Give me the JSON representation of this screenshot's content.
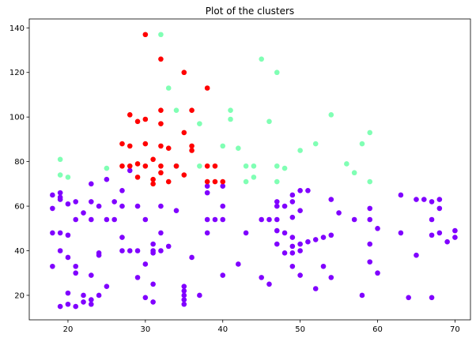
{
  "chart_data": {
    "type": "scatter",
    "title": "Plot of the clusters",
    "xlabel": "",
    "ylabel": "",
    "xlim": [
      15,
      72
    ],
    "ylim": [
      9,
      144
    ],
    "xticks": [
      20,
      30,
      40,
      50,
      60,
      70
    ],
    "yticks": [
      20,
      40,
      60,
      80,
      100,
      120,
      140
    ],
    "grid": false,
    "legend": "none",
    "series": [
      {
        "color": "#8000ff",
        "points": [
          [
            18,
            65
          ],
          [
            18,
            59
          ],
          [
            18,
            48
          ],
          [
            18,
            33
          ],
          [
            19,
            66
          ],
          [
            19,
            64
          ],
          [
            19,
            63
          ],
          [
            19,
            48
          ],
          [
            19,
            40
          ],
          [
            19,
            15
          ],
          [
            20,
            61
          ],
          [
            20,
            47
          ],
          [
            20,
            37
          ],
          [
            20,
            21
          ],
          [
            20,
            16
          ],
          [
            21,
            62
          ],
          [
            21,
            54
          ],
          [
            21,
            33
          ],
          [
            21,
            30
          ],
          [
            21,
            15
          ],
          [
            22,
            57
          ],
          [
            22,
            20
          ],
          [
            22,
            17
          ],
          [
            23,
            70
          ],
          [
            23,
            62
          ],
          [
            23,
            54
          ],
          [
            23,
            29
          ],
          [
            23,
            18
          ],
          [
            23,
            16
          ],
          [
            24,
            60
          ],
          [
            24,
            39
          ],
          [
            24,
            38
          ],
          [
            24,
            20
          ],
          [
            25,
            72
          ],
          [
            25,
            54
          ],
          [
            25,
            24
          ],
          [
            26,
            62
          ],
          [
            26,
            54
          ],
          [
            27,
            67
          ],
          [
            27,
            60
          ],
          [
            27,
            46
          ],
          [
            27,
            40
          ],
          [
            28,
            76
          ],
          [
            28,
            40
          ],
          [
            29,
            60
          ],
          [
            29,
            40
          ],
          [
            29,
            28
          ],
          [
            30,
            54
          ],
          [
            30,
            34
          ],
          [
            30,
            19
          ],
          [
            31,
            43
          ],
          [
            31,
            40
          ],
          [
            31,
            39
          ],
          [
            31,
            25
          ],
          [
            31,
            17
          ],
          [
            32,
            60
          ],
          [
            32,
            48
          ],
          [
            32,
            40
          ],
          [
            33,
            42
          ],
          [
            34,
            58
          ],
          [
            34,
            78
          ],
          [
            35,
            24
          ],
          [
            35,
            22
          ],
          [
            35,
            20
          ],
          [
            35,
            18
          ],
          [
            35,
            16
          ],
          [
            36,
            37
          ],
          [
            37,
            20
          ],
          [
            38,
            69
          ],
          [
            38,
            66
          ],
          [
            38,
            54
          ],
          [
            38,
            48
          ],
          [
            39,
            54
          ],
          [
            40,
            69
          ],
          [
            40,
            60
          ],
          [
            40,
            54
          ],
          [
            40,
            29
          ],
          [
            42,
            34
          ],
          [
            43,
            48
          ],
          [
            45,
            54
          ],
          [
            45,
            28
          ],
          [
            46,
            54
          ],
          [
            46,
            25
          ],
          [
            47,
            62
          ],
          [
            47,
            60
          ],
          [
            47,
            54
          ],
          [
            47,
            49
          ],
          [
            47,
            43
          ],
          [
            48,
            60
          ],
          [
            48,
            48
          ],
          [
            48,
            39
          ],
          [
            49,
            62
          ],
          [
            49,
            65
          ],
          [
            49,
            55
          ],
          [
            49,
            46
          ],
          [
            49,
            42
          ],
          [
            49,
            39
          ],
          [
            49,
            33
          ],
          [
            50,
            67
          ],
          [
            50,
            58
          ],
          [
            50,
            43
          ],
          [
            50,
            40
          ],
          [
            50,
            29
          ],
          [
            51,
            67
          ],
          [
            51,
            44
          ],
          [
            52,
            45
          ],
          [
            52,
            23
          ],
          [
            53,
            46
          ],
          [
            53,
            33
          ],
          [
            54,
            63
          ],
          [
            54,
            47
          ],
          [
            54,
            28
          ],
          [
            55,
            57
          ],
          [
            57,
            54
          ],
          [
            58,
            20
          ],
          [
            59,
            59
          ],
          [
            59,
            54
          ],
          [
            59,
            43
          ],
          [
            59,
            35
          ],
          [
            60,
            50
          ],
          [
            60,
            30
          ],
          [
            63,
            65
          ],
          [
            63,
            48
          ],
          [
            64,
            19
          ],
          [
            65,
            63
          ],
          [
            65,
            38
          ],
          [
            66,
            63
          ],
          [
            67,
            62
          ],
          [
            67,
            54
          ],
          [
            67,
            47
          ],
          [
            67,
            19
          ],
          [
            68,
            63
          ],
          [
            68,
            59
          ],
          [
            68,
            48
          ],
          [
            69,
            44
          ],
          [
            70,
            49
          ],
          [
            70,
            46
          ]
        ]
      },
      {
        "color": "#80ffb4",
        "points": [
          [
            19,
            81
          ],
          [
            19,
            74
          ],
          [
            20,
            73
          ],
          [
            25,
            77
          ],
          [
            32,
            137
          ],
          [
            33,
            113
          ],
          [
            34,
            103
          ],
          [
            34,
            78
          ],
          [
            37,
            97
          ],
          [
            37,
            78
          ],
          [
            40,
            87
          ],
          [
            41,
            103
          ],
          [
            41,
            99
          ],
          [
            42,
            86
          ],
          [
            43,
            78
          ],
          [
            43,
            71
          ],
          [
            44,
            78
          ],
          [
            44,
            73
          ],
          [
            45,
            126
          ],
          [
            46,
            98
          ],
          [
            47,
            120
          ],
          [
            47,
            78
          ],
          [
            47,
            71
          ],
          [
            48,
            77
          ],
          [
            50,
            85
          ],
          [
            52,
            88
          ],
          [
            54,
            101
          ],
          [
            56,
            79
          ],
          [
            57,
            75
          ],
          [
            58,
            88
          ],
          [
            59,
            93
          ],
          [
            59,
            71
          ]
        ]
      },
      {
        "color": "#ff0000",
        "points": [
          [
            27,
            88
          ],
          [
            27,
            78
          ],
          [
            28,
            101
          ],
          [
            28,
            87
          ],
          [
            28,
            78
          ],
          [
            29,
            98
          ],
          [
            29,
            79
          ],
          [
            29,
            73
          ],
          [
            30,
            137
          ],
          [
            30,
            99
          ],
          [
            30,
            88
          ],
          [
            30,
            78
          ],
          [
            31,
            81
          ],
          [
            31,
            72
          ],
          [
            31,
            70
          ],
          [
            32,
            126
          ],
          [
            32,
            103
          ],
          [
            32,
            97
          ],
          [
            32,
            87
          ],
          [
            32,
            78
          ],
          [
            32,
            75
          ],
          [
            33,
            86
          ],
          [
            33,
            71
          ],
          [
            34,
            78
          ],
          [
            35,
            120
          ],
          [
            35,
            93
          ],
          [
            35,
            74
          ],
          [
            36,
            103
          ],
          [
            36,
            87
          ],
          [
            36,
            85
          ],
          [
            38,
            113
          ],
          [
            38,
            78
          ],
          [
            38,
            71
          ],
          [
            39,
            78
          ],
          [
            39,
            71
          ],
          [
            40,
            71
          ]
        ]
      }
    ]
  }
}
